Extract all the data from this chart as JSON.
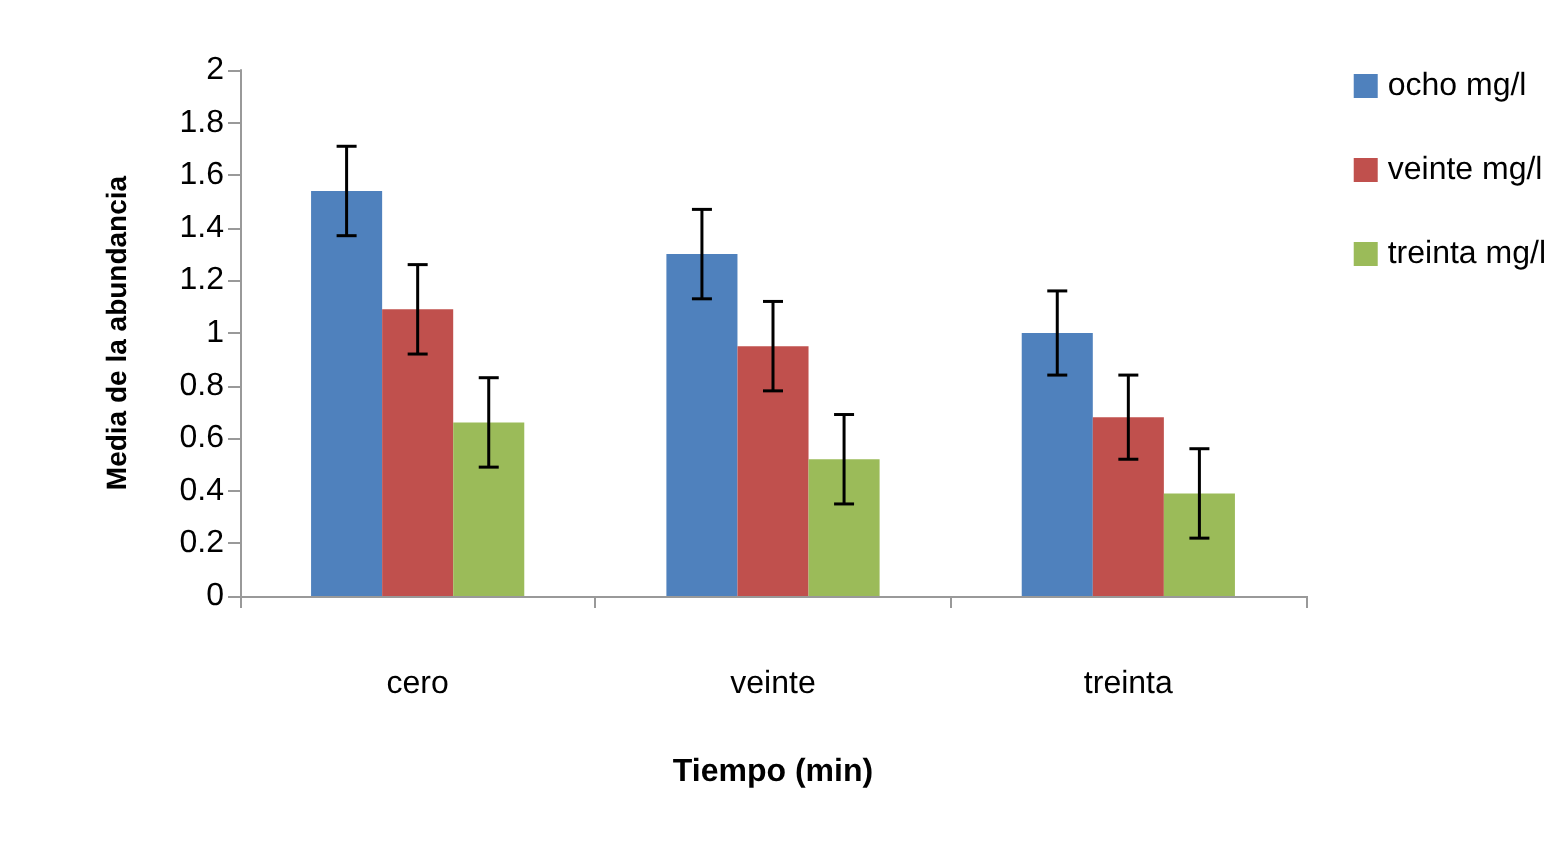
{
  "chart_data": {
    "type": "bar",
    "xlabel": "Tiempo (min)",
    "ylabel": "Media de la abundancia",
    "categories": [
      "cero",
      "veinte",
      "treinta"
    ],
    "series": [
      {
        "name": "ocho mg/l",
        "color": "#4f81bd",
        "values": [
          1.54,
          1.3,
          1.0
        ],
        "errors": [
          0.17,
          0.17,
          0.16
        ]
      },
      {
        "name": "veinte mg/l",
        "color": "#c0504d",
        "values": [
          1.09,
          0.95,
          0.68
        ],
        "errors": [
          0.17,
          0.17,
          0.16
        ]
      },
      {
        "name": "treinta mg/l",
        "color": "#9bbb59",
        "values": [
          0.66,
          0.52,
          0.39
        ],
        "errors": [
          0.17,
          0.17,
          0.17
        ]
      }
    ],
    "ylim": [
      0,
      2
    ],
    "yticks": [
      0,
      0.2,
      0.4,
      0.6,
      0.8,
      1,
      1.2,
      1.4,
      1.6,
      1.8,
      2
    ],
    "grid": false,
    "legend": "right"
  }
}
